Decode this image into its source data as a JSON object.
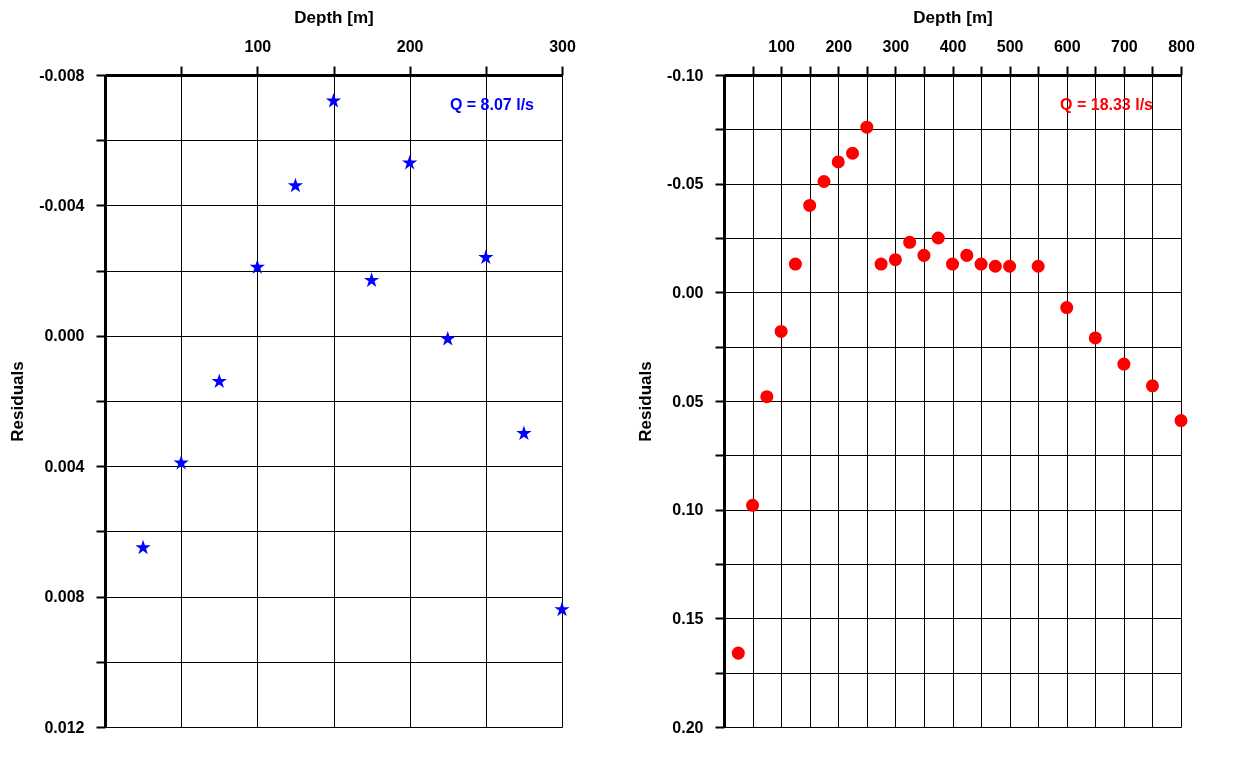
{
  "chart_data": [
    {
      "type": "scatter",
      "xlabel": "Depth [m]",
      "ylabel": "Residuals",
      "annotations": [
        "Q = 8.07 l/s"
      ],
      "marker": "star",
      "grid": true,
      "x": [
        25,
        50,
        75,
        100,
        125,
        150,
        175,
        200,
        225,
        250,
        275,
        300
      ],
      "series": [
        {
          "color": "#0000ff",
          "values": [
            0.0065,
            0.0039,
            0.0014,
            -0.0021,
            -0.0046,
            -0.0072,
            -0.0017,
            -0.0053,
            0.0001,
            -0.0024,
            0.003,
            0.0084
          ]
        }
      ],
      "xlim": [
        0,
        300
      ],
      "xticks": [
        {
          "value": 50,
          "label": null
        },
        100,
        {
          "value": 150,
          "label": null
        },
        200,
        {
          "value": 250,
          "label": null
        },
        300
      ],
      "ylim": [
        0.012,
        -0.008
      ],
      "yticks": [
        -0.008,
        {
          "value": -0.006,
          "label": null
        },
        -0.004,
        {
          "value": -0.002,
          "label": null
        },
        {
          "value": 0,
          "label": "0.000"
        },
        {
          "value": 0.002,
          "label": null
        },
        0.004,
        {
          "value": 0.006,
          "label": null
        },
        0.008,
        {
          "value": 0.01,
          "label": null
        },
        0.012
      ]
    },
    {
      "type": "scatter",
      "xlabel": "Depth [m]",
      "ylabel": "Residuals",
      "annotations": [
        "Q = 18.33 l/s"
      ],
      "marker": "circle",
      "grid": true,
      "x": [
        25,
        50,
        75,
        100,
        125,
        150,
        175,
        200,
        225,
        250,
        275,
        300,
        325,
        350,
        375,
        400,
        425,
        450,
        475,
        500,
        550,
        600,
        650,
        700,
        750,
        800
      ],
      "series": [
        {
          "color": "#ff0000",
          "values": [
            0.166,
            0.098,
            0.048,
            0.018,
            -0.013,
            -0.04,
            -0.051,
            -0.06,
            -0.064,
            -0.076,
            -0.013,
            -0.015,
            -0.023,
            -0.017,
            -0.025,
            -0.013,
            -0.017,
            -0.013,
            -0.012,
            -0.012,
            -0.012,
            0.007,
            0.021,
            0.033,
            0.043,
            0.059
          ]
        }
      ],
      "xlim": [
        0,
        800
      ],
      "xticks": [
        {
          "value": 50,
          "label": null
        },
        100,
        {
          "value": 150,
          "label": null
        },
        200,
        {
          "value": 250,
          "label": null
        },
        300,
        {
          "value": 350,
          "label": null
        },
        400,
        {
          "value": 450,
          "label": null
        },
        500,
        {
          "value": 550,
          "label": null
        },
        600,
        {
          "value": 650,
          "label": null
        },
        700,
        {
          "value": 750,
          "label": null
        },
        800
      ],
      "ylim": [
        0.2,
        -0.1
      ],
      "yticks": [
        {
          "value": -0.1,
          "label": "-0.10"
        },
        {
          "value": -0.075,
          "label": null
        },
        -0.05,
        {
          "value": -0.025,
          "label": null
        },
        {
          "value": 0,
          "label": "0.00"
        },
        {
          "value": 0.025,
          "label": null
        },
        0.05,
        {
          "value": 0.075,
          "label": null
        },
        {
          "value": 0.1,
          "label": "0.10"
        },
        {
          "value": 0.125,
          "label": null
        },
        0.15,
        {
          "value": 0.175,
          "label": null
        },
        {
          "value": 0.2,
          "label": "0.20"
        }
      ]
    }
  ]
}
